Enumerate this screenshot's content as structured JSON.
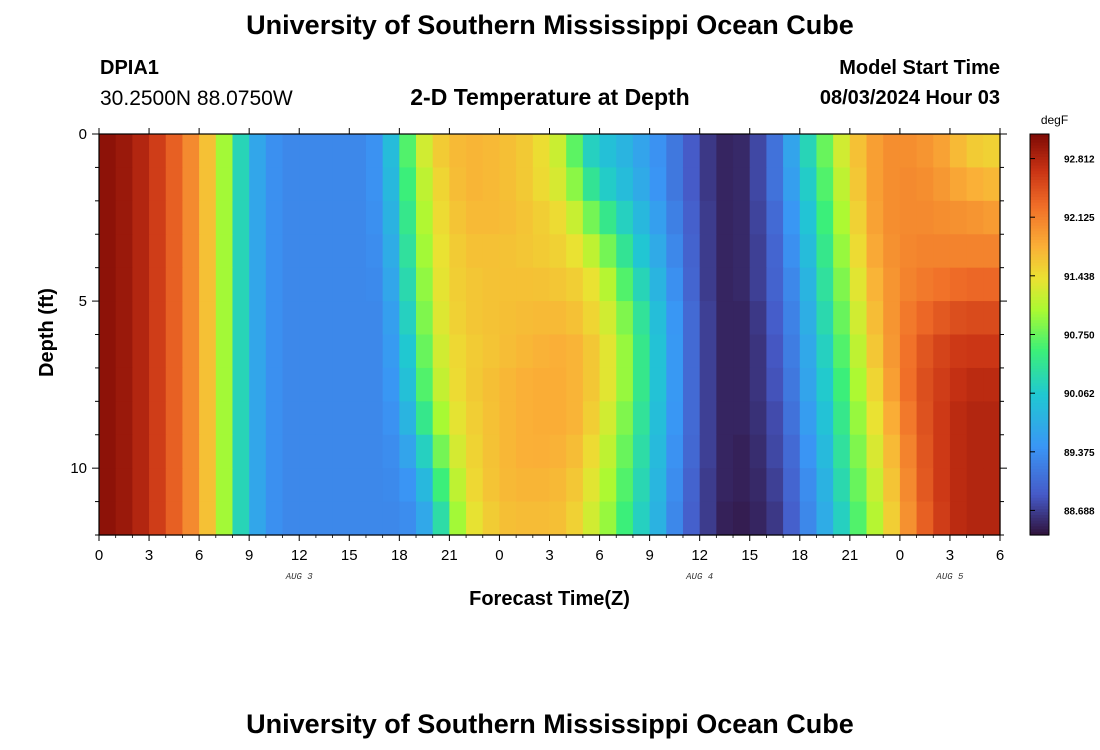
{
  "page": {
    "title_top": "University of Southern Mississippi Ocean Cube",
    "title_bottom": "University of Southern Mississippi Ocean Cube"
  },
  "station": {
    "id": "DPIA1",
    "coords": "30.2500N  88.0750W"
  },
  "model_start": {
    "label": "Model Start Time",
    "value": "08/03/2024 Hour 03"
  },
  "chart_data": {
    "type": "heatmap",
    "subtitle": "2-D Temperature at Depth",
    "xlabel": "Forecast Time(Z)",
    "ylabel": "Depth (ft)",
    "x_range_hours": [
      0,
      54
    ],
    "x_tick_labels": [
      "0",
      "3",
      "6",
      "9",
      "12",
      "15",
      "18",
      "21",
      "0",
      "3",
      "6",
      "9",
      "12",
      "15",
      "18",
      "21",
      "0",
      "3",
      "6"
    ],
    "date_labels": [
      {
        "label": "AUG 3",
        "hour": 12
      },
      {
        "label": "AUG 4",
        "hour": 36
      },
      {
        "label": "AUG 5",
        "hour": 51
      }
    ],
    "y_range_ft": [
      0,
      12
    ],
    "y_tick_labels": [
      "0",
      "5",
      "10"
    ],
    "y_tick_values": [
      0,
      5,
      10
    ],
    "colorbar": {
      "units": "degF",
      "min": 88.4,
      "max": 93.1,
      "labels": [
        "92.812",
        "92.125",
        "91.438",
        "90.750",
        "90.062",
        "89.375",
        "88.688"
      ],
      "label_values": [
        92.812,
        92.125,
        91.438,
        90.75,
        90.062,
        89.375,
        88.688
      ]
    },
    "depth_levels_ft": [
      0.5,
      1.5,
      2.5,
      3.5,
      4.5,
      5.5,
      6.5,
      7.5,
      8.5,
      9.5,
      10.5,
      11.5
    ],
    "time_keyframes_hours": [
      0,
      2,
      4,
      6,
      7,
      8,
      9,
      10,
      11,
      12,
      14,
      16,
      17,
      18,
      19,
      20,
      21,
      22,
      24,
      26,
      28,
      29,
      30,
      31,
      32,
      33,
      34,
      35,
      36,
      37,
      38,
      39,
      40,
      41,
      42,
      43,
      44,
      45,
      46,
      47,
      48,
      49,
      50,
      51,
      52,
      54
    ],
    "temperature_rows_degF": [
      [
        93.05,
        92.9,
        92.5,
        91.9,
        91.4,
        90.6,
        89.8,
        89.45,
        89.3,
        89.3,
        89.3,
        89.3,
        89.5,
        90.3,
        91.0,
        91.5,
        91.65,
        91.75,
        91.7,
        91.55,
        91.1,
        90.3,
        90.0,
        89.9,
        89.7,
        89.5,
        89.3,
        89.0,
        88.75,
        88.55,
        88.5,
        88.6,
        88.9,
        89.3,
        89.9,
        90.5,
        91.0,
        91.5,
        91.8,
        92.0,
        92.05,
        92.0,
        91.95,
        91.8,
        91.6,
        91.5
      ],
      [
        93.05,
        92.9,
        92.5,
        91.9,
        91.4,
        90.6,
        89.8,
        89.45,
        89.3,
        89.3,
        89.3,
        89.3,
        89.5,
        90.2,
        90.9,
        91.4,
        91.6,
        91.75,
        91.7,
        91.55,
        91.2,
        90.6,
        90.2,
        90.0,
        89.8,
        89.55,
        89.3,
        89.0,
        88.75,
        88.55,
        88.5,
        88.6,
        88.9,
        89.3,
        89.8,
        90.4,
        90.9,
        91.4,
        91.8,
        92.0,
        92.05,
        92.05,
        92.0,
        91.9,
        91.8,
        91.7
      ],
      [
        93.05,
        92.9,
        92.5,
        91.9,
        91.4,
        90.6,
        89.8,
        89.45,
        89.3,
        89.3,
        89.3,
        89.3,
        89.45,
        90.1,
        90.8,
        91.35,
        91.55,
        91.7,
        91.7,
        91.6,
        91.4,
        91.0,
        90.6,
        90.3,
        90.0,
        89.7,
        89.4,
        89.05,
        88.8,
        88.55,
        88.5,
        88.6,
        88.85,
        89.2,
        89.7,
        90.3,
        90.8,
        91.3,
        91.75,
        92.0,
        92.05,
        92.05,
        92.05,
        92.0,
        92.0,
        91.9
      ],
      [
        93.05,
        92.9,
        92.5,
        91.9,
        91.4,
        90.6,
        89.8,
        89.45,
        89.3,
        89.3,
        89.3,
        89.3,
        89.4,
        90.0,
        90.7,
        91.3,
        91.5,
        91.65,
        91.65,
        91.6,
        91.5,
        91.3,
        91.0,
        90.6,
        90.2,
        89.85,
        89.5,
        89.1,
        88.8,
        88.55,
        88.5,
        88.6,
        88.8,
        89.15,
        89.6,
        90.2,
        90.7,
        91.2,
        91.7,
        91.95,
        92.05,
        92.1,
        92.1,
        92.1,
        92.1,
        92.1
      ],
      [
        93.05,
        92.9,
        92.5,
        91.9,
        91.4,
        90.6,
        89.8,
        89.45,
        89.3,
        89.3,
        89.3,
        89.3,
        89.35,
        89.9,
        90.6,
        91.25,
        91.5,
        91.6,
        91.65,
        91.65,
        91.6,
        91.5,
        91.3,
        90.9,
        90.4,
        90.0,
        89.6,
        89.15,
        88.8,
        88.55,
        88.5,
        88.6,
        88.8,
        89.1,
        89.5,
        90.1,
        90.6,
        91.1,
        91.6,
        91.9,
        92.05,
        92.15,
        92.2,
        92.25,
        92.3,
        92.3
      ],
      [
        93.05,
        92.9,
        92.5,
        91.9,
        91.4,
        90.6,
        89.8,
        89.45,
        89.3,
        89.3,
        89.3,
        89.3,
        89.3,
        89.8,
        90.5,
        91.2,
        91.45,
        91.6,
        91.65,
        91.7,
        91.7,
        91.6,
        91.4,
        91.1,
        90.6,
        90.15,
        89.7,
        89.2,
        88.85,
        88.55,
        88.5,
        88.55,
        88.75,
        89.05,
        89.45,
        90.0,
        90.5,
        91.0,
        91.5,
        91.85,
        92.1,
        92.25,
        92.35,
        92.45,
        92.5,
        92.5
      ],
      [
        93.05,
        92.9,
        92.5,
        91.9,
        91.4,
        90.6,
        89.8,
        89.45,
        89.3,
        89.3,
        89.3,
        89.3,
        89.3,
        89.7,
        90.4,
        91.1,
        91.4,
        91.55,
        91.65,
        91.75,
        91.8,
        91.7,
        91.5,
        91.2,
        90.7,
        90.2,
        89.75,
        89.2,
        88.85,
        88.55,
        88.5,
        88.55,
        88.7,
        89.0,
        89.4,
        89.9,
        90.4,
        90.9,
        91.4,
        91.8,
        92.1,
        92.35,
        92.5,
        92.6,
        92.65,
        92.65
      ],
      [
        93.05,
        92.9,
        92.5,
        91.9,
        91.4,
        90.6,
        89.8,
        89.45,
        89.3,
        89.3,
        89.3,
        89.3,
        89.3,
        89.6,
        90.3,
        91.0,
        91.35,
        91.55,
        91.7,
        91.8,
        91.8,
        91.7,
        91.5,
        91.2,
        90.7,
        90.2,
        89.75,
        89.2,
        88.85,
        88.55,
        88.5,
        88.55,
        88.7,
        88.95,
        89.35,
        89.85,
        90.3,
        90.8,
        91.3,
        91.7,
        92.1,
        92.4,
        92.55,
        92.65,
        92.75,
        92.75
      ],
      [
        93.05,
        92.9,
        92.5,
        91.9,
        91.4,
        90.6,
        89.8,
        89.45,
        89.3,
        89.3,
        89.3,
        89.3,
        89.3,
        89.5,
        90.1,
        90.8,
        91.25,
        91.5,
        91.7,
        91.8,
        91.8,
        91.7,
        91.4,
        91.1,
        90.6,
        90.15,
        89.7,
        89.2,
        88.85,
        88.55,
        88.5,
        88.55,
        88.65,
        88.9,
        89.3,
        89.75,
        90.2,
        90.7,
        91.2,
        91.6,
        92.0,
        92.35,
        92.55,
        92.7,
        92.8,
        92.8
      ],
      [
        93.05,
        92.9,
        92.5,
        91.9,
        91.4,
        90.6,
        89.8,
        89.45,
        89.3,
        89.3,
        89.3,
        89.3,
        89.3,
        89.4,
        89.8,
        90.5,
        91.1,
        91.45,
        91.7,
        91.8,
        91.75,
        91.6,
        91.3,
        91.0,
        90.5,
        90.1,
        89.65,
        89.15,
        88.85,
        88.55,
        88.5,
        88.5,
        88.65,
        88.85,
        89.2,
        89.65,
        90.1,
        90.6,
        91.1,
        91.5,
        91.9,
        92.3,
        92.55,
        92.7,
        92.8,
        92.8
      ],
      [
        93.05,
        92.9,
        92.5,
        91.9,
        91.4,
        90.6,
        89.8,
        89.45,
        89.3,
        89.3,
        89.3,
        89.3,
        89.3,
        89.35,
        89.5,
        90.2,
        90.9,
        91.4,
        91.7,
        91.75,
        91.7,
        91.5,
        91.2,
        90.9,
        90.4,
        90.05,
        89.6,
        89.1,
        88.8,
        88.55,
        88.5,
        88.5,
        88.6,
        88.8,
        89.15,
        89.55,
        90.0,
        90.5,
        91.0,
        91.4,
        91.85,
        92.25,
        92.55,
        92.7,
        92.8,
        92.8
      ],
      [
        93.05,
        92.9,
        92.5,
        91.9,
        91.4,
        90.6,
        89.8,
        89.45,
        89.3,
        89.3,
        89.3,
        89.3,
        89.3,
        89.3,
        89.4,
        89.9,
        90.7,
        91.3,
        91.65,
        91.7,
        91.65,
        91.4,
        91.1,
        90.8,
        90.3,
        90.0,
        89.55,
        89.05,
        88.8,
        88.55,
        88.45,
        88.5,
        88.55,
        88.75,
        89.1,
        89.5,
        89.9,
        90.4,
        90.9,
        91.3,
        91.8,
        92.2,
        92.5,
        92.7,
        92.8,
        92.8
      ]
    ]
  }
}
